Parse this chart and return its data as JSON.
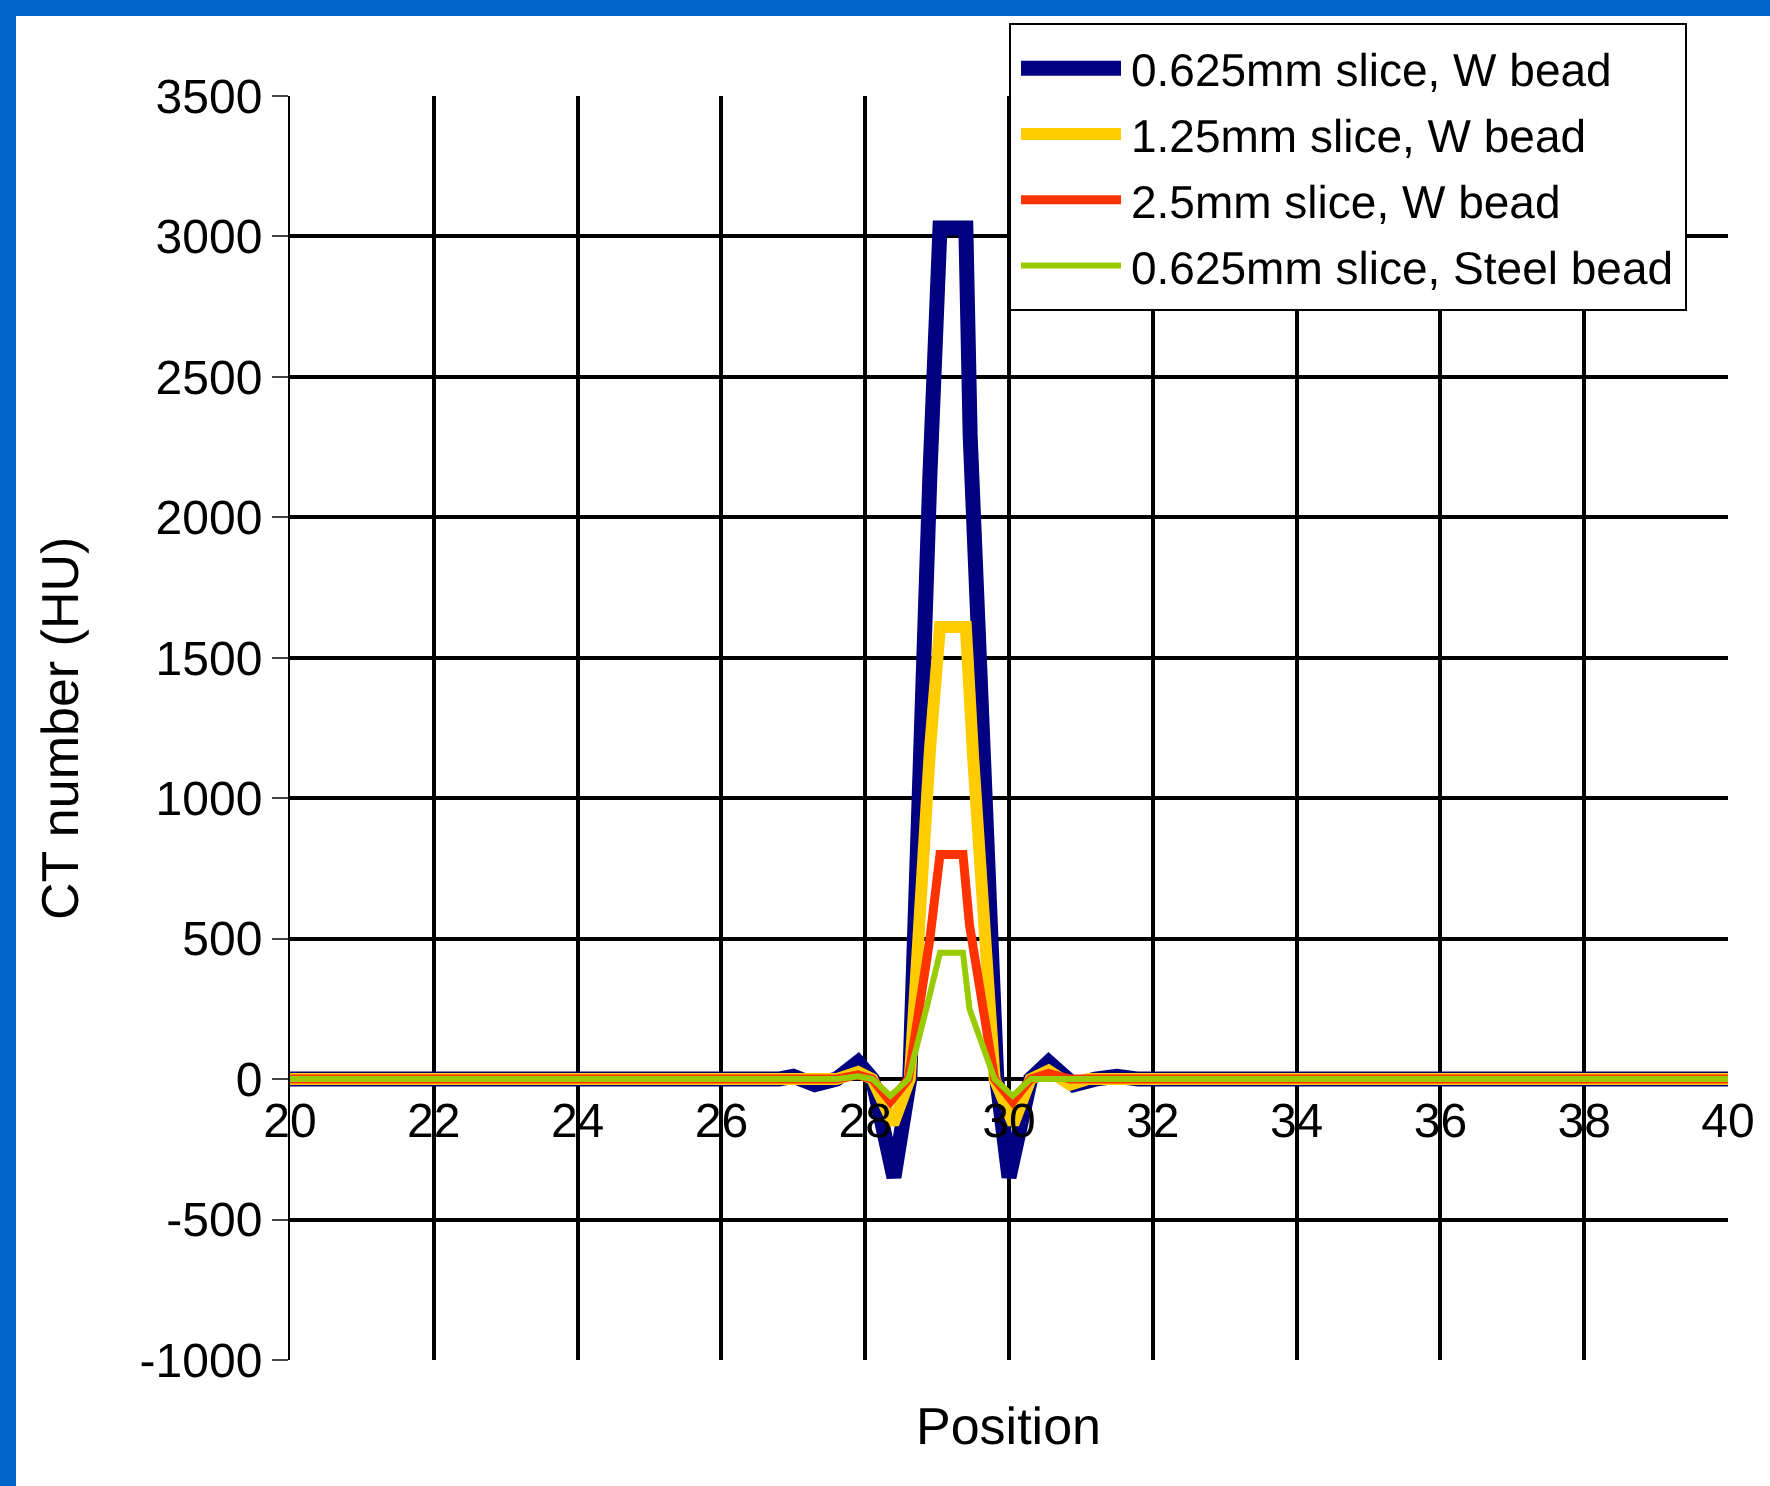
{
  "chart_data": {
    "type": "line",
    "xlabel": "Position",
    "ylabel": "CT number (HU)",
    "xlim": [
      20,
      40
    ],
    "xticks": [
      20,
      22,
      24,
      26,
      28,
      30,
      32,
      34,
      36,
      38,
      40
    ],
    "ylim": [
      -1000,
      3500
    ],
    "yticks": [
      -1000,
      -500,
      0,
      500,
      1000,
      1500,
      2000,
      2500,
      3000,
      3500
    ],
    "grid": true,
    "legend": "top right",
    "marker": "none",
    "line_style": "solid",
    "series": [
      {
        "name": "0.625mm slice, W bead",
        "color": "#000080",
        "x": [
          20,
          26.8,
          27.0,
          27.3,
          27.6,
          27.9,
          28.1,
          28.4,
          28.62,
          28.9,
          29.04,
          29.4,
          29.46,
          29.83,
          30.0,
          30.3,
          30.55,
          30.9,
          31.2,
          31.5,
          31.8,
          40
        ],
        "values": [
          0,
          0,
          10,
          -20,
          0,
          60,
          0,
          -350,
          0,
          2150,
          3030,
          3030,
          2290,
          0,
          -350,
          0,
          60,
          -20,
          0,
          10,
          0,
          0
        ]
      },
      {
        "name": "1.25mm slice, W bead",
        "color": "#ffcc00",
        "x": [
          20,
          27.6,
          27.9,
          28.1,
          28.39,
          28.62,
          28.9,
          29.04,
          29.4,
          29.5,
          29.8,
          30.06,
          30.3,
          30.55,
          30.85,
          31.1,
          40
        ],
        "values": [
          0,
          0,
          25,
          0,
          -160,
          0,
          1170,
          1610,
          1610,
          1150,
          0,
          -160,
          0,
          30,
          -20,
          0,
          0
        ]
      },
      {
        "name": "2.5mm slice, W bead",
        "color": "#ff3300",
        "x": [
          20,
          27.6,
          27.9,
          28.1,
          28.35,
          28.6,
          28.9,
          29.04,
          29.36,
          29.45,
          29.8,
          30.05,
          30.3,
          30.55,
          30.85,
          40
        ],
        "values": [
          0,
          0,
          15,
          0,
          -80,
          0,
          500,
          800,
          800,
          550,
          0,
          -80,
          0,
          20,
          0,
          0
        ]
      },
      {
        "name": "0.625mm slice, Steel bead",
        "color": "#99cc00",
        "x": [
          20,
          27.6,
          27.9,
          28.1,
          28.35,
          28.6,
          28.85,
          29.04,
          29.36,
          29.45,
          29.8,
          30.05,
          30.3,
          40
        ],
        "values": [
          0,
          0,
          10,
          0,
          -60,
          0,
          250,
          450,
          450,
          250,
          0,
          -60,
          0,
          0
        ]
      }
    ]
  }
}
